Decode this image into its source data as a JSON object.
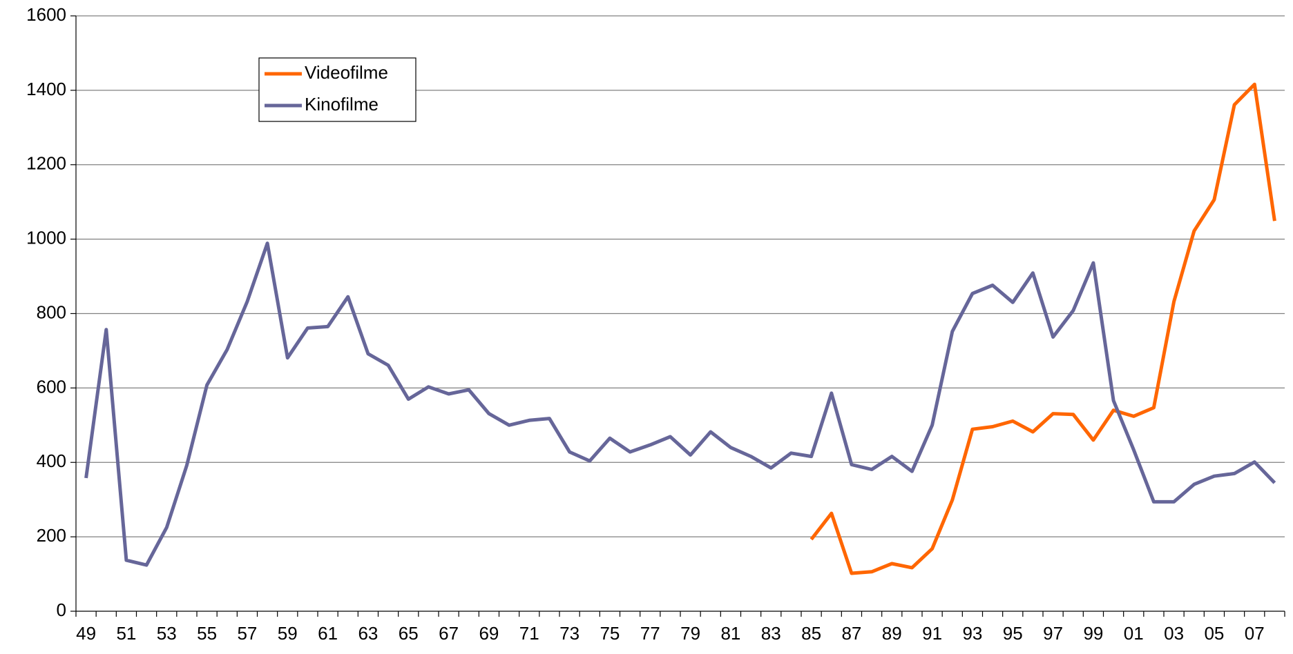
{
  "chart_data": {
    "type": "line",
    "categories": [
      "49",
      null,
      "51",
      null,
      "53",
      null,
      "55",
      null,
      "57",
      null,
      "59",
      null,
      "61",
      null,
      "63",
      null,
      "65",
      null,
      "67",
      null,
      "69",
      null,
      "71",
      null,
      "73",
      null,
      "75",
      null,
      "77",
      null,
      "79",
      null,
      "81",
      null,
      "83",
      null,
      "85",
      null,
      "87",
      null,
      "89",
      null,
      "91",
      null,
      "93",
      null,
      "95",
      null,
      "97",
      null,
      "99",
      null,
      "01",
      null,
      "03",
      null,
      "05",
      null,
      "07",
      null
    ],
    "series": [
      {
        "name": "Videofilme",
        "color": "#ff6600",
        "values": [
          null,
          null,
          null,
          null,
          null,
          null,
          null,
          null,
          null,
          null,
          null,
          null,
          null,
          null,
          null,
          null,
          null,
          null,
          null,
          null,
          null,
          null,
          null,
          null,
          null,
          null,
          null,
          null,
          null,
          null,
          null,
          null,
          null,
          null,
          null,
          null,
          193,
          263,
          102,
          106,
          128,
          117,
          168,
          299,
          489,
          496,
          511,
          482,
          531,
          529,
          460,
          540,
          524,
          547,
          832,
          1022,
          1106,
          1361,
          1416,
          1049
        ]
      },
      {
        "name": "Kinofilme",
        "color": "#666699",
        "values": [
          358,
          757,
          137,
          124,
          225,
          392,
          608,
          703,
          832,
          989,
          681,
          761,
          765,
          845,
          692,
          661,
          570,
          603,
          584,
          595,
          531,
          500,
          513,
          518,
          428,
          404,
          465,
          428,
          447,
          469,
          420,
          482,
          440,
          416,
          385,
          425,
          416,
          586,
          394,
          381,
          416,
          376,
          500,
          752,
          854,
          876,
          830,
          909,
          737,
          808,
          936,
          566,
          434,
          294,
          294,
          341,
          363,
          370,
          401,
          345
        ]
      }
    ],
    "ylim": [
      0,
      1600
    ],
    "yticks": [
      0,
      200,
      400,
      600,
      800,
      1000,
      1200,
      1400,
      1600
    ],
    "grid": true,
    "legend": "upper left"
  }
}
